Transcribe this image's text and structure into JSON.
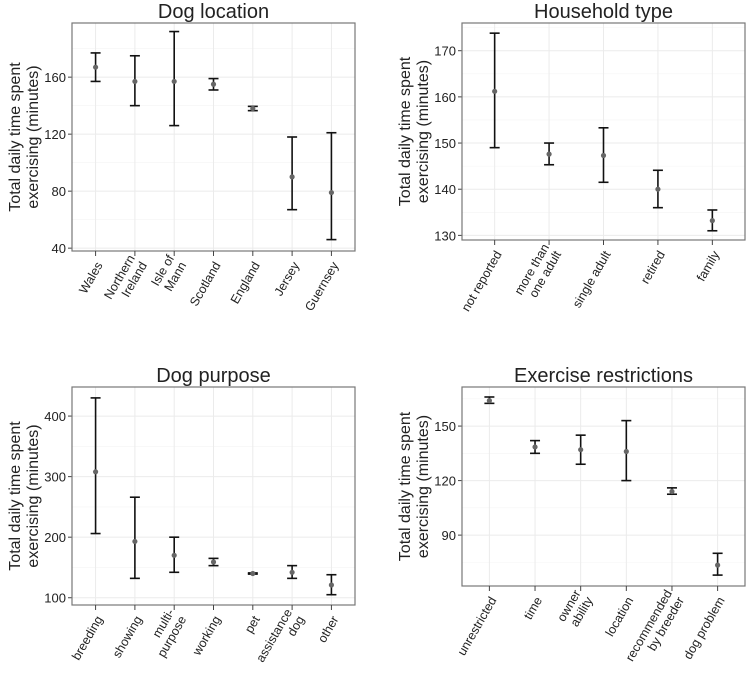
{
  "chart_data": [
    {
      "type": "errorbar",
      "title": "Dog location",
      "ylabel": [
        "Total daily time spent",
        "exercising (minutes)"
      ],
      "ylim": [
        38,
        198
      ],
      "yticks": [
        40,
        80,
        120,
        160
      ],
      "grid": true,
      "categories": [
        [
          "Wales"
        ],
        [
          "Northern",
          "Ireland"
        ],
        [
          "Isle of",
          "Mann"
        ],
        [
          "Scotland"
        ],
        [
          "England"
        ],
        [
          "Jersey"
        ],
        [
          "Guernsey"
        ]
      ],
      "mean": [
        167,
        157,
        157,
        155,
        138,
        90,
        79
      ],
      "lower": [
        157,
        140,
        126,
        151,
        136.5,
        67,
        46
      ],
      "upper": [
        177,
        175,
        192,
        159,
        139.5,
        118,
        121
      ]
    },
    {
      "type": "errorbar",
      "title": "Household type",
      "ylabel": [
        "Total daily time spent",
        "exercising (minutes)"
      ],
      "ylim": [
        129,
        176
      ],
      "yticks": [
        130,
        140,
        150,
        160,
        170
      ],
      "grid": true,
      "categories": [
        [
          "not reported"
        ],
        [
          "more than",
          "one adult"
        ],
        [
          "single adult"
        ],
        [
          "retired"
        ],
        [
          "family"
        ]
      ],
      "mean": [
        161.2,
        147.6,
        147.3,
        140,
        133.2
      ],
      "lower": [
        149,
        145.3,
        141.5,
        136,
        131
      ],
      "upper": [
        173.8,
        150,
        153.3,
        144.1,
        135.5
      ]
    },
    {
      "type": "errorbar",
      "title": "Dog purpose",
      "ylabel": [
        "Total daily time spent",
        "exercising (minutes)"
      ],
      "ylim": [
        88,
        448
      ],
      "yticks": [
        100,
        200,
        300,
        400
      ],
      "grid": true,
      "categories": [
        [
          "breeding"
        ],
        [
          "showing"
        ],
        [
          "multi-",
          "purpose"
        ],
        [
          "working"
        ],
        [
          "pet"
        ],
        [
          "assistance",
          "dog"
        ],
        [
          "other"
        ]
      ],
      "mean": [
        308,
        193,
        170,
        159,
        140,
        142,
        121
      ],
      "lower": [
        206,
        132,
        142,
        153,
        139,
        132,
        105
      ],
      "upper": [
        430,
        266,
        200,
        165,
        141,
        153,
        138
      ]
    },
    {
      "type": "errorbar",
      "title": "Exercise restrictions",
      "ylabel": [
        "Total daily time spent",
        "exercising (minutes)"
      ],
      "ylim": [
        62,
        171.5
      ],
      "yticks": [
        90,
        120,
        150
      ],
      "grid": true,
      "categories": [
        [
          "unrestricted"
        ],
        [
          "time"
        ],
        [
          "owner",
          "ability"
        ],
        [
          "location"
        ],
        [
          "recommended",
          "by breeder"
        ],
        [
          "dog problem"
        ]
      ],
      "mean": [
        164,
        138.5,
        137,
        136,
        114,
        73.5
      ],
      "lower": [
        162.5,
        135,
        129,
        120,
        112.5,
        68
      ],
      "upper": [
        166,
        142,
        145,
        153,
        116,
        80
      ]
    }
  ]
}
